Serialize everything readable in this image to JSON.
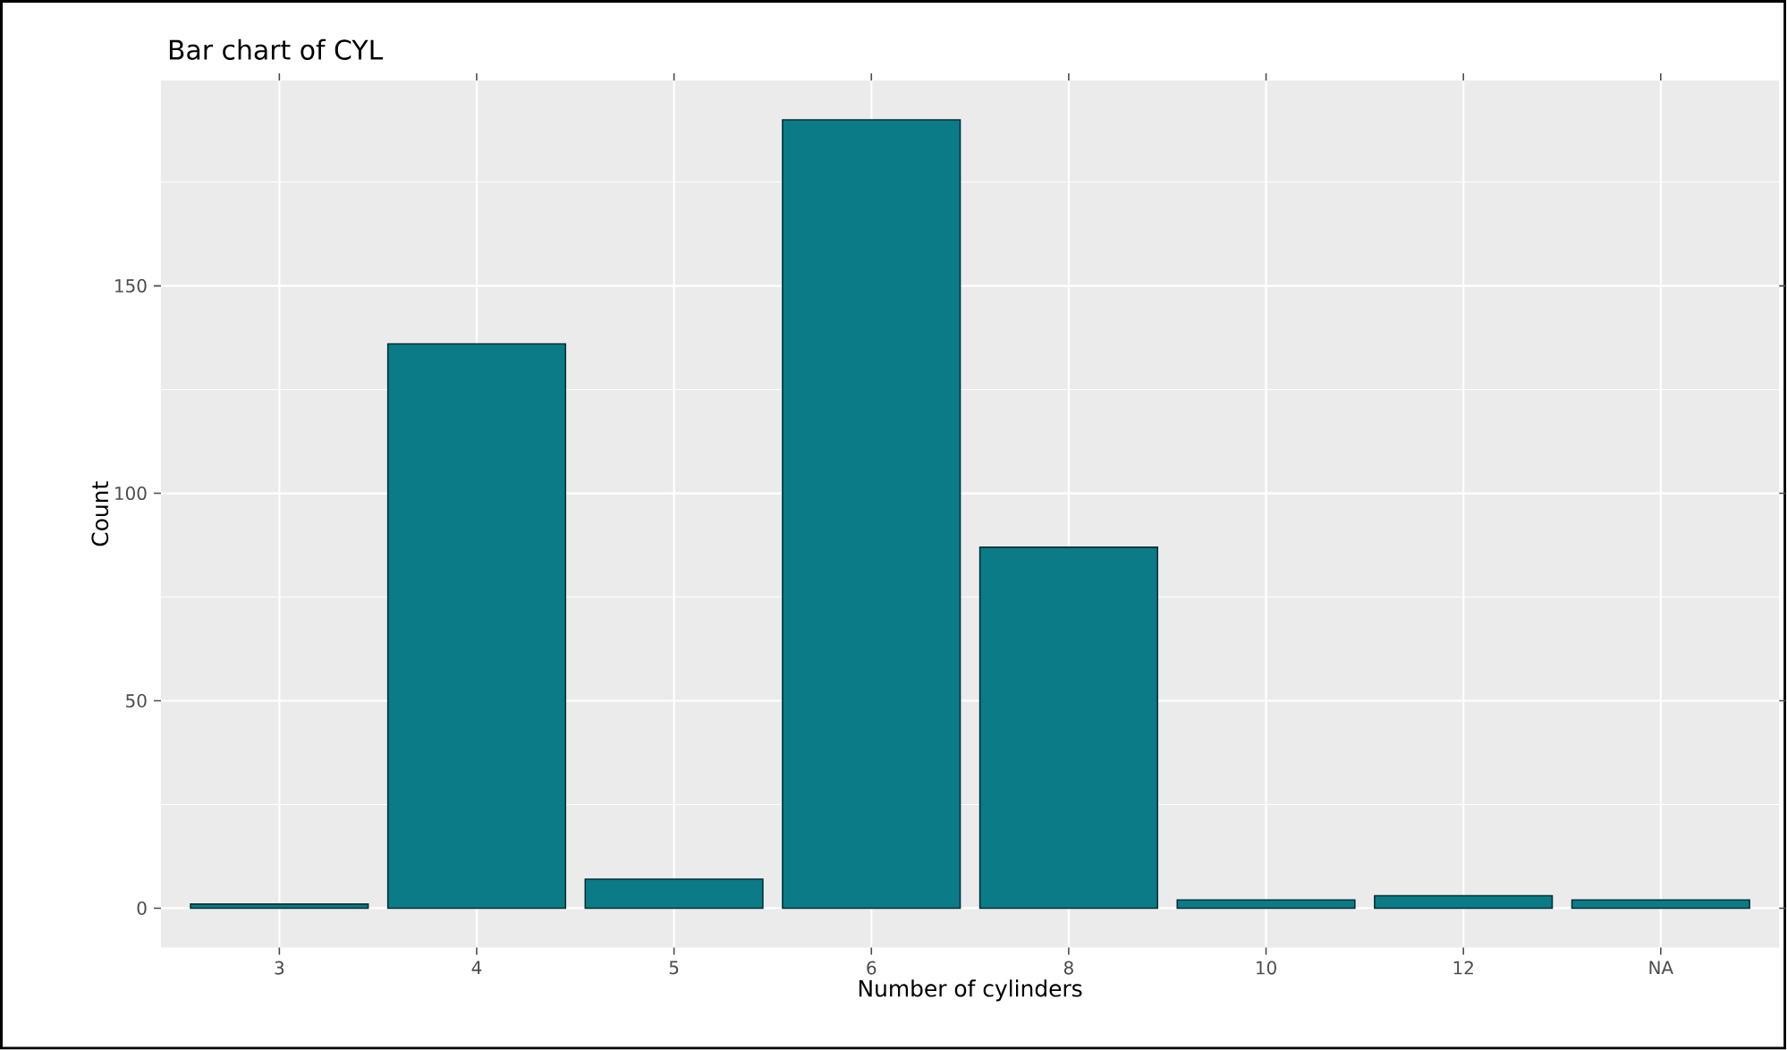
{
  "chart_data": {
    "type": "bar",
    "title": "Bar chart of CYL",
    "xlabel": "Number of cylinders",
    "ylabel": "Count",
    "categories": [
      "3",
      "4",
      "5",
      "6",
      "8",
      "10",
      "12",
      "NA"
    ],
    "values": [
      1,
      136,
      7,
      190,
      87,
      2,
      3,
      2
    ],
    "color": "#0a7b87",
    "ylim": [
      -9.5,
      199.5
    ],
    "yticks": [
      0,
      50,
      100,
      150
    ],
    "grid": true
  }
}
